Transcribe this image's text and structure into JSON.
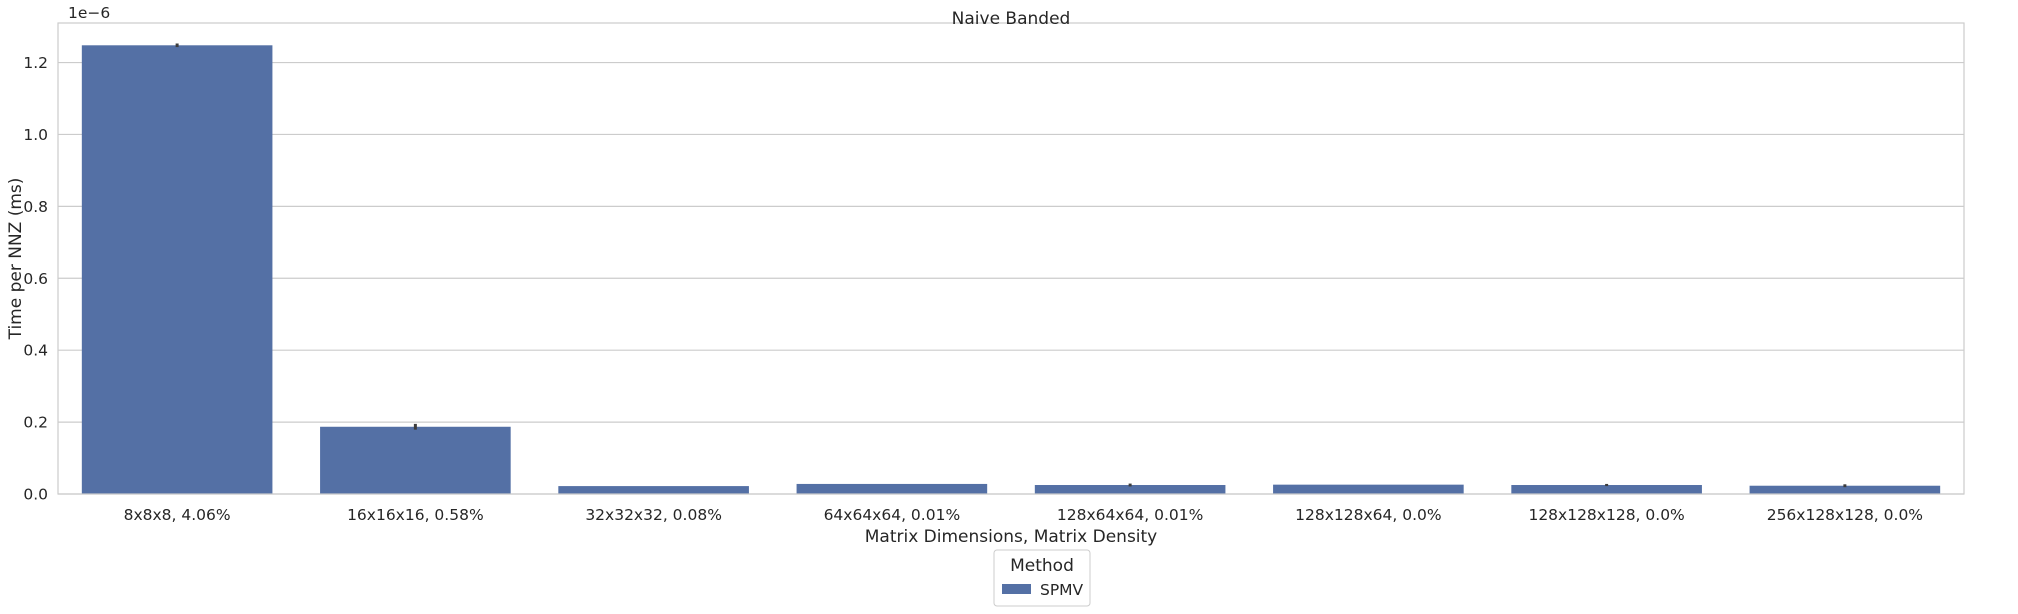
{
  "chart_data": {
    "type": "bar",
    "title": "Naive Banded",
    "xlabel": "Matrix Dimensions, Matrix Density",
    "ylabel": "Time per NNZ (ms)",
    "y_offset_label": "1e−6",
    "categories": [
      "8x8x8, 4.06%",
      "16x16x16, 0.58%",
      "32x32x32, 0.08%",
      "64x64x64, 0.01%",
      "128x64x64, 0.01%",
      "128x128x64, 0.0%",
      "128x128x128, 0.0%",
      "256x128x128, 0.0%"
    ],
    "series": [
      {
        "name": "SPMV",
        "color": "#5470a5",
        "values": [
          1.248,
          0.187,
          0.022,
          0.028,
          0.025,
          0.026,
          0.025,
          0.023
        ],
        "error": [
          0.005,
          0.008,
          0.0,
          0.0,
          0.004,
          0.0,
          0.003,
          0.004
        ]
      }
    ],
    "ylim": [
      0,
      1.31
    ],
    "yticks": [
      0.0,
      0.2,
      0.4,
      0.6,
      0.8,
      1.0,
      1.2
    ],
    "ytick_labels": [
      "0.0",
      "0.2",
      "0.4",
      "0.6",
      "0.8",
      "1.0",
      "1.2"
    ],
    "grid": "horizontal",
    "legend": {
      "title": "Method",
      "placement": "below-center"
    }
  }
}
